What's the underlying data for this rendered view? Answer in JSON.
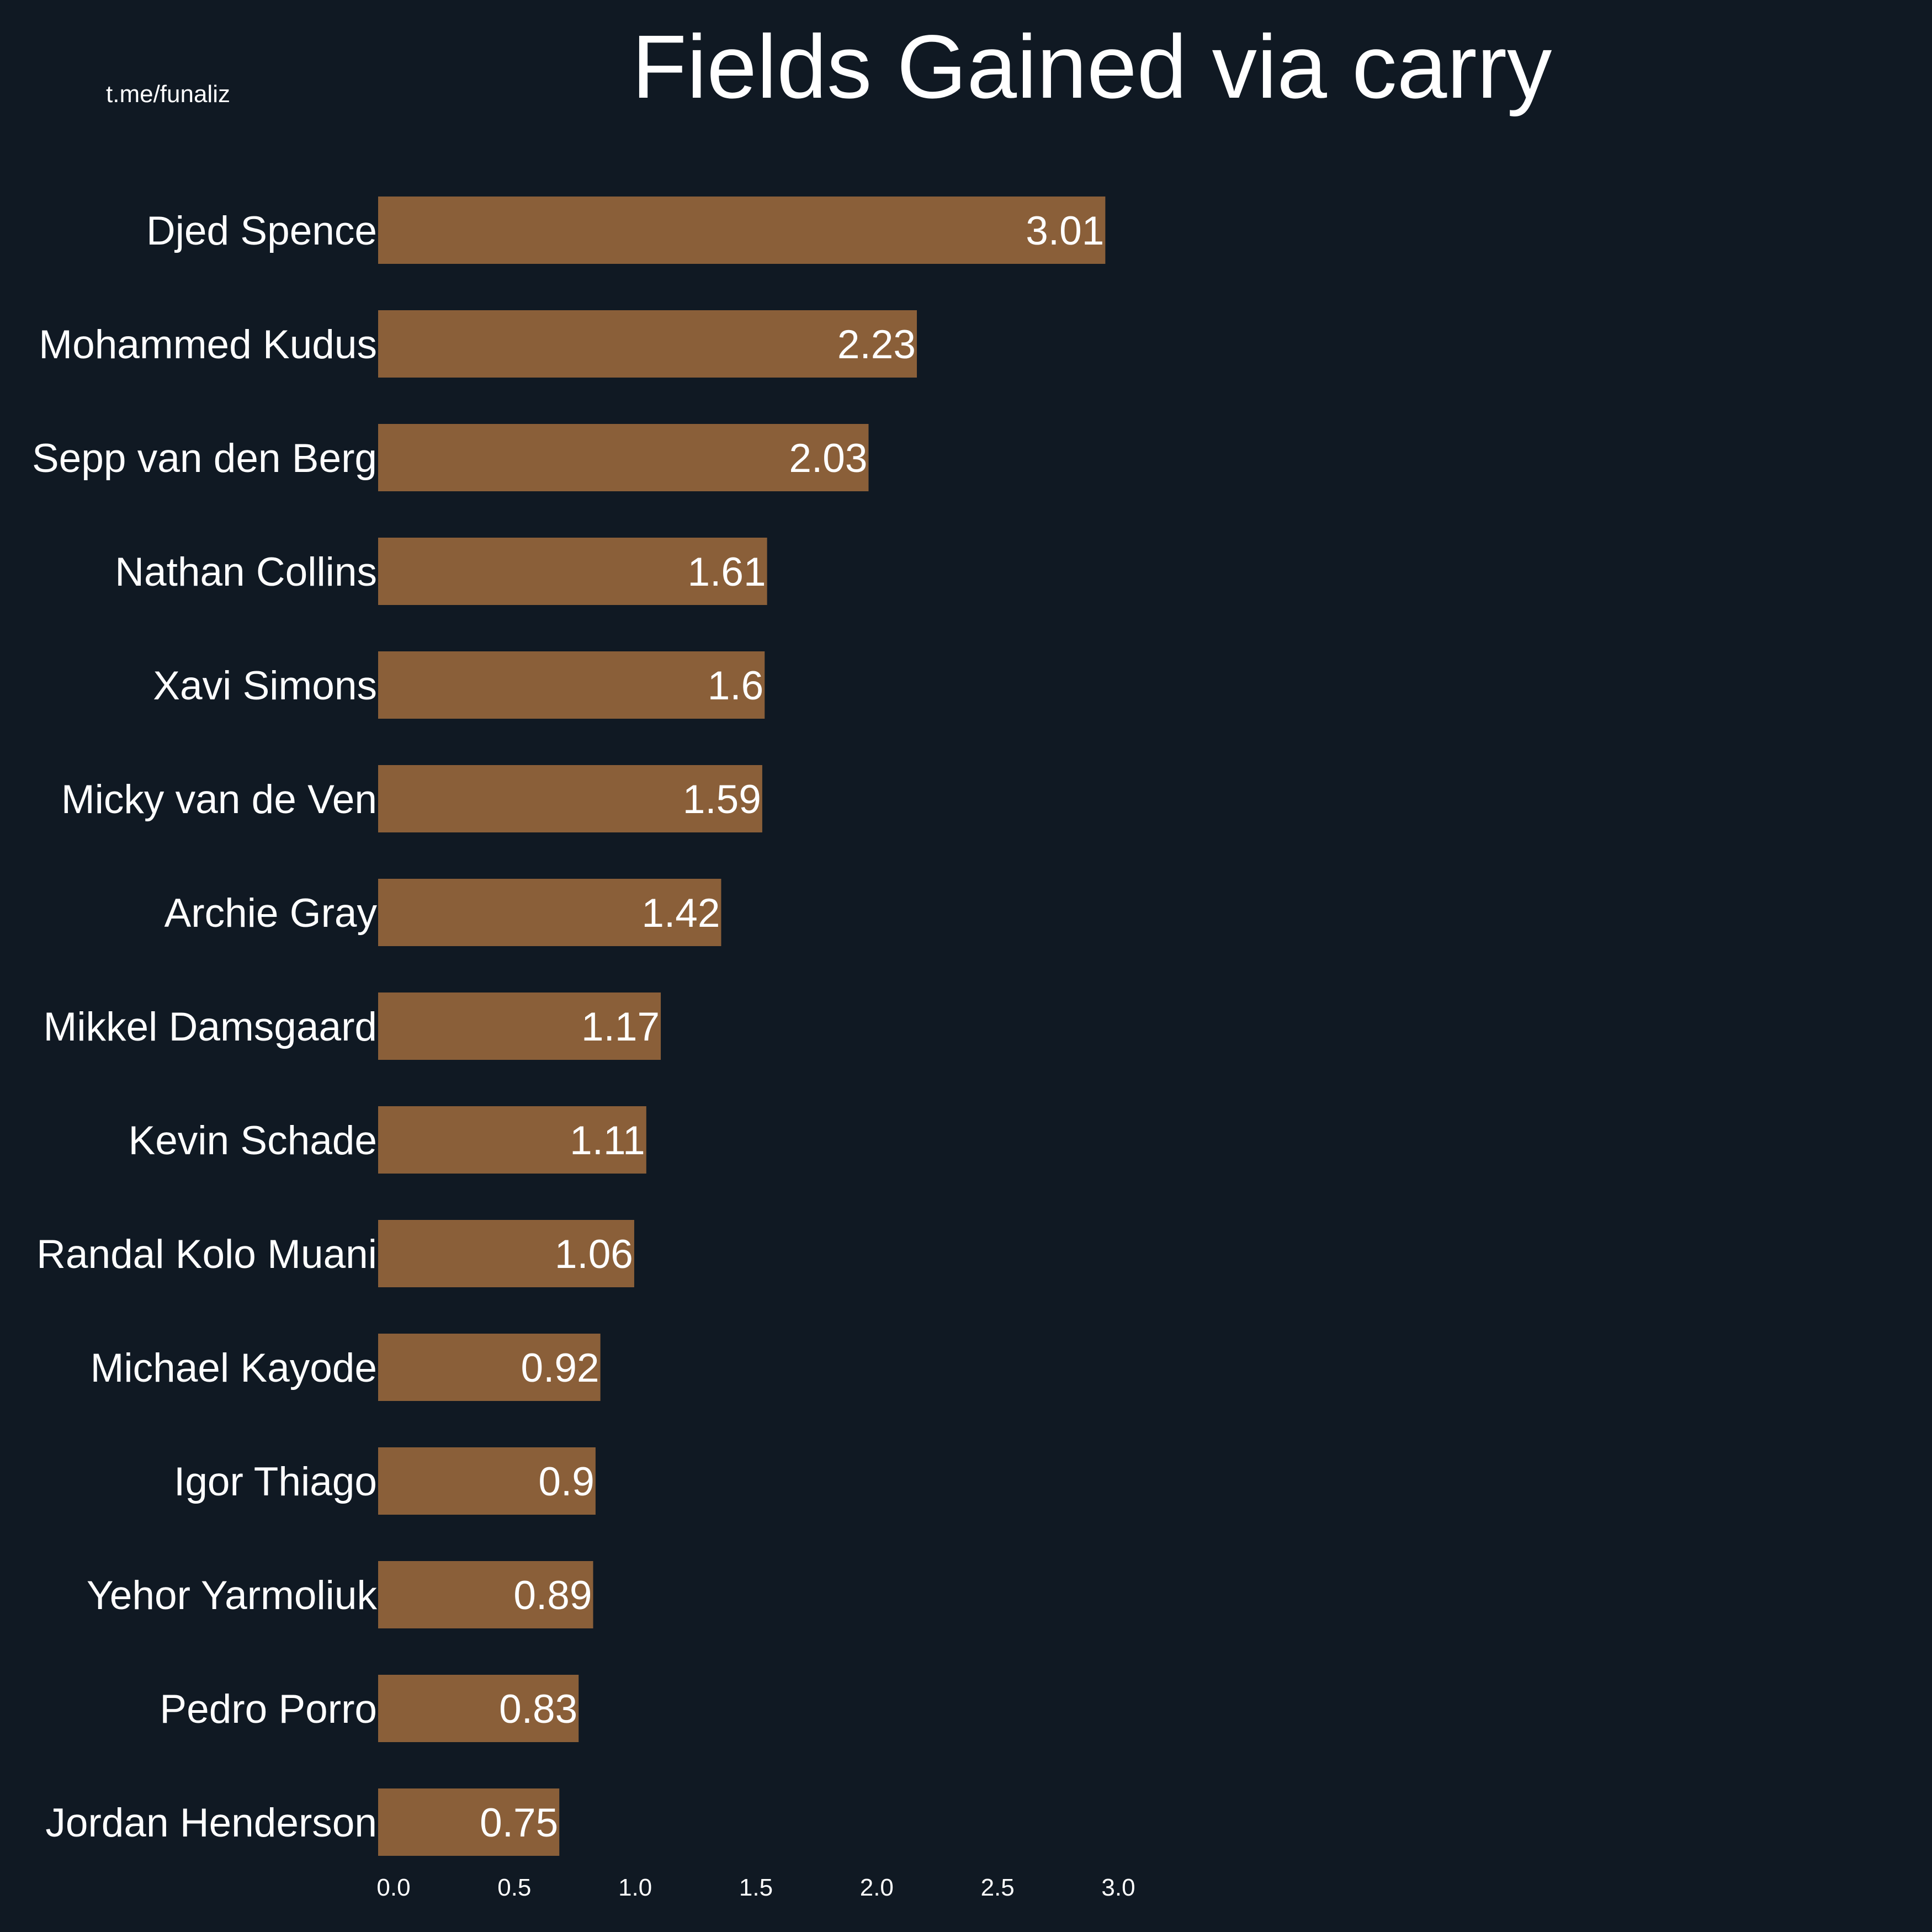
{
  "watermark": "t.me/funaliz",
  "colors": {
    "background": "#101923",
    "bar": "#8a5f39",
    "text": "#ffffff"
  },
  "chart_data": {
    "type": "bar",
    "orientation": "horizontal",
    "title": "Fields Gained via carry",
    "xlabel": "",
    "ylabel": "",
    "xlim": [
      0,
      3.0
    ],
    "grid": false,
    "xticks": [
      "0.0",
      "0.5",
      "1.0",
      "1.5",
      "2.0",
      "2.5",
      "3.0"
    ],
    "xtick_values": [
      0,
      0.5,
      1.0,
      1.5,
      2.0,
      2.5,
      3.0
    ],
    "categories": [
      "Djed Spence",
      "Mohammed Kudus",
      "Sepp van den Berg",
      "Nathan Collins",
      "Xavi Simons",
      "Micky van de Ven",
      "Archie Gray",
      "Mikkel Damsgaard",
      "Kevin Schade",
      "Randal Kolo Muani",
      "Michael Kayode",
      "Igor Thiago",
      "Yehor Yarmoliuk",
      "Pedro Porro",
      "Jordan Henderson"
    ],
    "values": [
      3.01,
      2.23,
      2.03,
      1.61,
      1.6,
      1.59,
      1.42,
      1.17,
      1.11,
      1.06,
      0.92,
      0.9,
      0.89,
      0.83,
      0.75
    ],
    "value_labels": [
      "3.01",
      "2.23",
      "2.03",
      "1.61",
      "1.6",
      "1.59",
      "1.42",
      "1.17",
      "1.11",
      "1.06",
      "0.92",
      "0.9",
      "0.89",
      "0.83",
      "0.75"
    ]
  }
}
